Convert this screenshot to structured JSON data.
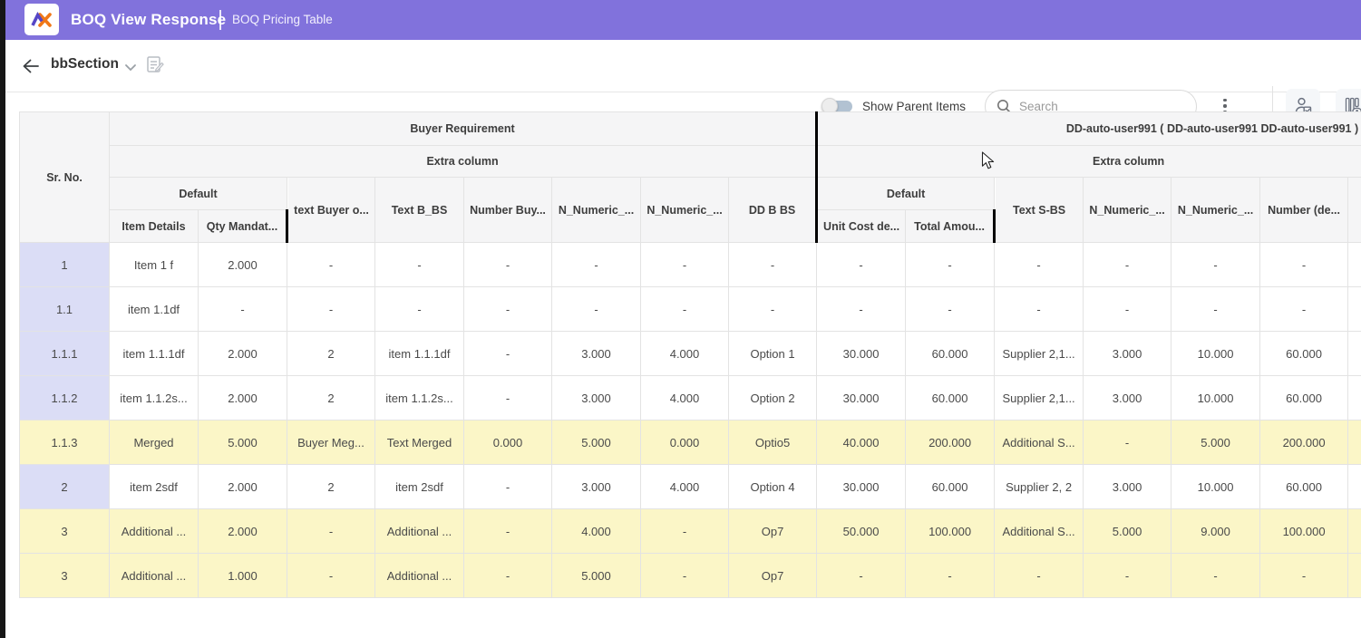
{
  "app_bar": {
    "title": "BOQ View Response",
    "subtitle": "BOQ Pricing Table",
    "logo": "ax-monogram-logo",
    "bg_color": "#8172DC"
  },
  "toolbar": {
    "section_name": "bbSection",
    "show_parent_items_label": "Show Parent Items",
    "toggle_state": "off",
    "search": {
      "placeholder": "Search",
      "value": ""
    },
    "icons": [
      "back-arrow-icon",
      "chevron-down-icon",
      "note-edit-icon",
      "search-icon",
      "kebab-menu-icon",
      "user-verified-icon",
      "column-visibility-icon"
    ]
  },
  "table": {
    "group_headers": {
      "buyer": "Buyer Requirement",
      "supplier": "DD-auto-user991 ( DD-auto-user991 DD-auto-user991 )",
      "buyer_extra": "Extra column",
      "supplier_extra": "Extra column",
      "buyer_default": "Default",
      "supplier_default": "Default"
    },
    "columns": {
      "sr_no": "Sr. No.",
      "item_details": "Item Details",
      "qty_mandatory": "Qty Mandat...",
      "text_buyer": "text Buyer o...",
      "text_b_bs": "Text B_BS",
      "number_buyer": "Number Buy...",
      "n_numeric_b1": "N_Numeric_...",
      "n_numeric_b2": "N_Numeric_...",
      "dd_b_bs": "DD B BS",
      "unit_cost": "Unit Cost de...",
      "total_amount": "Total Amou...",
      "text_s_bs": "Text S-BS",
      "n_numeric_s1": "N_Numeric_...",
      "n_numeric_s2": "N_Numeric_...",
      "number_de": "Number (de..."
    },
    "rows": [
      {
        "highlight": false,
        "cells": [
          "1",
          "Item 1 f",
          "2.000",
          "-",
          "-",
          "-",
          "-",
          "-",
          "-",
          "-",
          "-",
          "-",
          "-",
          "-",
          "-",
          ""
        ]
      },
      {
        "highlight": false,
        "cells": [
          "1.1",
          "item 1.1df",
          "-",
          "-",
          "-",
          "-",
          "-",
          "-",
          "-",
          "-",
          "-",
          "-",
          "-",
          "-",
          "-",
          ""
        ]
      },
      {
        "highlight": false,
        "cells": [
          "1.1.1",
          "item 1.1.1df",
          "2.000",
          "2",
          "item 1.1.1df",
          "-",
          "3.000",
          "4.000",
          "Option 1",
          "30.000",
          "60.000",
          "Supplier 2,1...",
          "3.000",
          "10.000",
          "60.000",
          ""
        ]
      },
      {
        "highlight": false,
        "cells": [
          "1.1.2",
          "item 1.1.2s...",
          "2.000",
          "2",
          "item 1.1.2s...",
          "-",
          "3.000",
          "4.000",
          "Option 2",
          "30.000",
          "60.000",
          "Supplier 2,1...",
          "3.000",
          "10.000",
          "60.000",
          ""
        ]
      },
      {
        "highlight": true,
        "cells": [
          "1.1.3",
          "Merged",
          "5.000",
          "Buyer Meg...",
          "Text Merged",
          "0.000",
          "5.000",
          "0.000",
          "Optio5",
          "40.000",
          "200.000",
          "Additional S...",
          "-",
          "5.000",
          "200.000",
          ""
        ]
      },
      {
        "highlight": false,
        "cells": [
          "2",
          "item 2sdf",
          "2.000",
          "2",
          "item 2sdf",
          "-",
          "3.000",
          "4.000",
          "Option 4",
          "30.000",
          "60.000",
          "Supplier 2, 2",
          "3.000",
          "10.000",
          "60.000",
          ""
        ]
      },
      {
        "highlight": true,
        "cells": [
          "3",
          "Additional ...",
          "2.000",
          "-",
          "Additional ...",
          "-",
          "4.000",
          "-",
          "Op7",
          "50.000",
          "100.000",
          "Additional S...",
          "5.000",
          "9.000",
          "100.000",
          ""
        ]
      },
      {
        "highlight": true,
        "cells": [
          "3",
          "Additional ...",
          "1.000",
          "-",
          "Additional ...",
          "-",
          "5.000",
          "-",
          "Op7",
          "-",
          "-",
          "-",
          "-",
          "-",
          "-",
          ""
        ]
      }
    ]
  },
  "colors": {
    "app_bar": "#8172DC",
    "highlight_row": "#FBF6C7",
    "sr_cell": "#DBDDF6",
    "header_bg": "#F5F5F6",
    "section_divider": "#000000",
    "logo_purple": "#5646C6",
    "logo_orange": "#F07818"
  }
}
